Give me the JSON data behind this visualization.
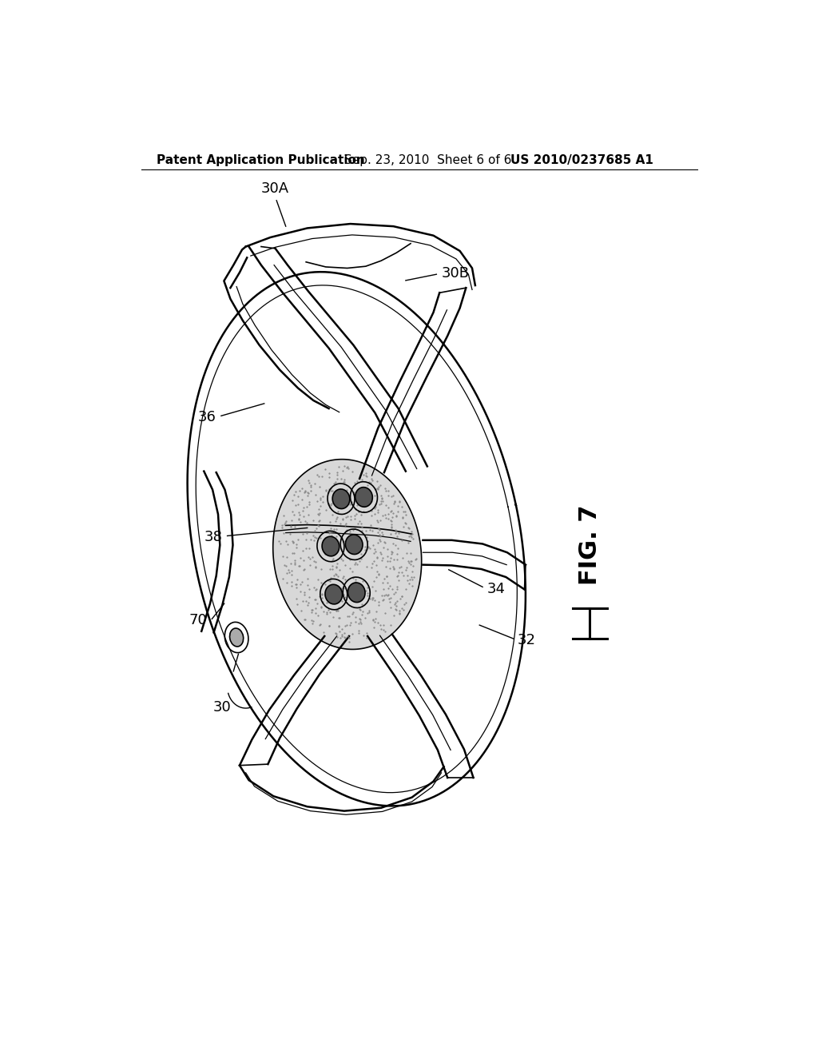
{
  "background_color": "#ffffff",
  "header_left": "Patent Application Publication",
  "header_center": "Sep. 23, 2010  Sheet 6 of 6",
  "header_right": "US 2010/0237685 A1",
  "fig_label": "FIG. 7",
  "line_color": "#000000",
  "header_fontsize": 11,
  "fig_label_fontsize": 22,
  "ref_fontsize": 13,
  "stipple_color": "#888888",
  "hub_fill": "#d8d8d8"
}
